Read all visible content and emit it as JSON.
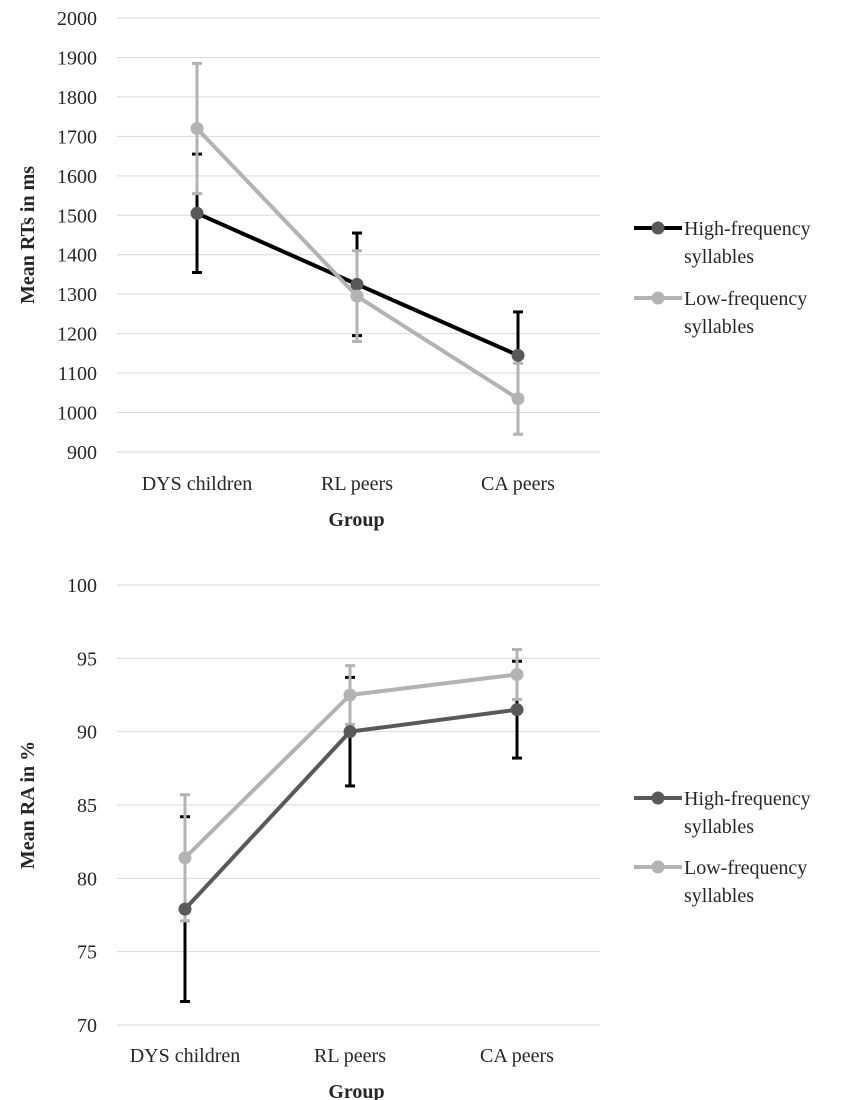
{
  "chart_data": [
    {
      "type": "line",
      "categories": [
        "DYS children",
        "RL peers",
        "CA peers"
      ],
      "xlabel": "Group",
      "ylabel": "Mean RTs in ms",
      "ylim": [
        900,
        2000
      ],
      "yticks": [
        900,
        1000,
        1100,
        1200,
        1300,
        1400,
        1500,
        1600,
        1700,
        1800,
        1900,
        2000
      ],
      "grid": true,
      "legend_position": "right",
      "series": [
        {
          "name": "High-frequency syllables",
          "name_lines": [
            "High-frequency",
            "syllables"
          ],
          "values": [
            1505,
            1325,
            1145
          ],
          "error": [
            150,
            130,
            110
          ],
          "line_color": "#000000",
          "marker_color": "#595959",
          "error_color": "#000000"
        },
        {
          "name": "Low-frequency syllables",
          "name_lines": [
            "Low-frequency",
            "syllables"
          ],
          "values": [
            1720,
            1295,
            1035
          ],
          "error": [
            165,
            115,
            90
          ],
          "line_color": "#b3b3b3",
          "marker_color": "#b3b3b3",
          "error_color": "#b3b3b3"
        }
      ]
    },
    {
      "type": "line",
      "categories": [
        "DYS children",
        "RL peers",
        "CA peers"
      ],
      "xlabel": "Group",
      "ylabel": "Mean RA in %",
      "ylim": [
        70,
        100
      ],
      "yticks": [
        70,
        75,
        80,
        85,
        90,
        95,
        100
      ],
      "grid": true,
      "legend_position": "right",
      "series": [
        {
          "name": "High-frequency syllables",
          "name_lines": [
            "High-frequency",
            "syllables"
          ],
          "values": [
            77.9,
            90.0,
            91.5
          ],
          "error": [
            6.3,
            3.7,
            3.3
          ],
          "line_color": "#595959",
          "marker_color": "#595959",
          "error_color": "#000000"
        },
        {
          "name": "Low-frequency syllables",
          "name_lines": [
            "Low-frequency",
            "syllables"
          ],
          "values": [
            81.4,
            92.5,
            93.9
          ],
          "error": [
            4.3,
            2.0,
            1.7
          ],
          "line_color": "#b3b3b3",
          "marker_color": "#b3b3b3",
          "error_color": "#b3b3b3"
        }
      ]
    }
  ]
}
